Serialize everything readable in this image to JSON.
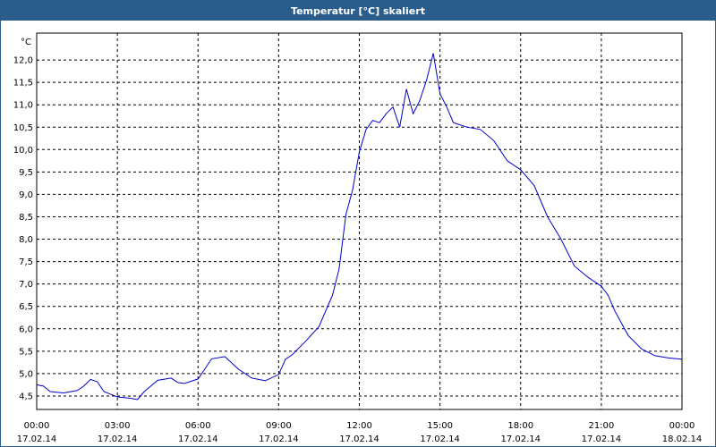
{
  "window": {
    "title": "Temperatur [°C] skaliert"
  },
  "colors": {
    "titlebar": "#2b5d8c",
    "series": "#0000cc",
    "grid": "#000000",
    "plot_bg": "#ffffff"
  },
  "chart_data": {
    "type": "line",
    "title": "Temperatur [°C] skaliert",
    "ylabel": "°C",
    "xlabel": "",
    "grid": true,
    "ylim": [
      4.2,
      12.6
    ],
    "xlim": [
      0,
      24
    ],
    "y_ticks": [
      "4,5",
      "5,0",
      "5,5",
      "6,0",
      "6,5",
      "7,0",
      "7,5",
      "8,0",
      "8,5",
      "9,0",
      "9,5",
      "10,0",
      "10,5",
      "11,0",
      "11,5",
      "12,0"
    ],
    "y_tick_values": [
      4.5,
      5.0,
      5.5,
      6.0,
      6.5,
      7.0,
      7.5,
      8.0,
      8.5,
      9.0,
      9.5,
      10.0,
      10.5,
      11.0,
      11.5,
      12.0
    ],
    "x_ticks": [
      {
        "time": "00:00",
        "date": "17.02.14"
      },
      {
        "time": "03:00",
        "date": "17.02.14"
      },
      {
        "time": "06:00",
        "date": "17.02.14"
      },
      {
        "time": "09:00",
        "date": "17.02.14"
      },
      {
        "time": "12:00",
        "date": "17.02.14"
      },
      {
        "time": "15:00",
        "date": "17.02.14"
      },
      {
        "time": "18:00",
        "date": "17.02.14"
      },
      {
        "time": "21:00",
        "date": "17.02.14"
      },
      {
        "time": "00:00",
        "date": "18.02.14"
      }
    ],
    "x_tick_values": [
      0,
      3,
      6,
      9,
      12,
      15,
      18,
      21,
      24
    ],
    "series": [
      {
        "x": [
          0,
          0.25,
          0.5,
          1,
          1.5,
          1.75,
          2,
          2.25,
          2.5,
          3,
          3.5,
          3.75,
          4,
          4.5,
          5,
          5.25,
          5.5,
          6,
          6.25,
          6.5,
          7,
          7.5,
          8,
          8.5,
          9,
          9.25,
          9.5,
          10,
          10.5,
          11,
          11.25,
          11.5,
          11.75,
          12,
          12.25,
          12.5,
          12.75,
          13,
          13.25,
          13.5,
          13.75,
          14,
          14.25,
          14.5,
          14.75,
          15,
          15.25,
          15.5,
          16,
          16.5,
          17,
          17.5,
          18,
          18.5,
          19,
          19.5,
          20,
          20.5,
          21,
          21.25,
          21.5,
          22,
          22.5,
          23,
          23.5,
          24
        ],
        "values": [
          4.75,
          4.72,
          4.6,
          4.57,
          4.62,
          4.72,
          4.87,
          4.82,
          4.6,
          4.48,
          4.45,
          4.42,
          4.6,
          4.85,
          4.9,
          4.8,
          4.78,
          4.88,
          5.1,
          5.33,
          5.38,
          5.1,
          4.9,
          4.84,
          4.98,
          5.32,
          5.42,
          5.72,
          6.05,
          6.75,
          7.35,
          8.55,
          9.1,
          9.95,
          10.45,
          10.65,
          10.6,
          10.8,
          10.95,
          10.5,
          11.35,
          10.8,
          11.1,
          11.55,
          12.15,
          11.25,
          10.95,
          10.6,
          10.5,
          10.45,
          10.2,
          9.75,
          9.55,
          9.2,
          8.5,
          8.0,
          7.4,
          7.15,
          6.95,
          6.75,
          6.4,
          5.85,
          5.55,
          5.4,
          5.35,
          5.32
        ]
      }
    ]
  }
}
